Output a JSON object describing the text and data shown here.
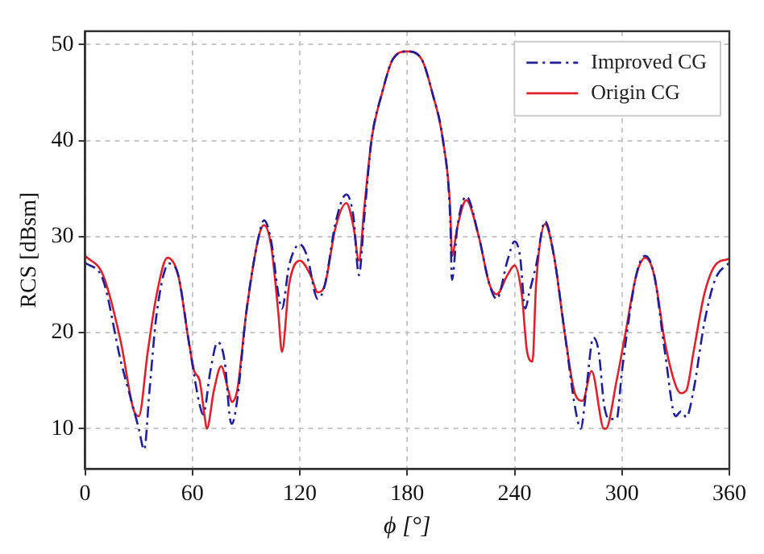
{
  "chart_data": {
    "type": "line",
    "xlabel": "ϕ [°]",
    "ylabel": "RCS [dBsm]",
    "xlim": [
      0,
      360
    ],
    "xticks": [
      0,
      60,
      120,
      180,
      240,
      300,
      360
    ],
    "ylim": [
      5.8,
      51.4
    ],
    "yticks": [
      10,
      20,
      30,
      40,
      50
    ],
    "grid": true,
    "legend": "top right",
    "marker": "none",
    "series": [
      {
        "name": "Improved CG",
        "color": "#1f1f9a",
        "line_style": "dashed",
        "x": [
          0,
          10,
          20,
          25,
          30,
          33,
          36,
          40,
          47,
          52,
          58,
          61,
          64,
          66,
          70,
          74,
          78,
          81,
          82,
          85,
          90,
          97,
          100,
          104,
          108,
          110,
          114,
          120,
          124,
          130,
          134,
          140,
          146,
          150,
          153,
          156,
          160,
          166,
          172,
          180,
          188,
          194,
          200,
          204,
          205,
          208,
          213,
          220,
          226,
          230,
          236,
          240,
          243,
          246,
          248,
          252,
          257,
          262,
          268,
          274,
          277,
          280,
          284,
          287,
          290,
          293,
          297,
          300,
          308,
          313,
          318,
          324,
          330,
          333,
          336,
          340,
          346,
          352,
          360
        ],
        "values": [
          27.3,
          25.5,
          17,
          13.5,
          10,
          7.8,
          14,
          22,
          27.2,
          26,
          19,
          15.5,
          12.5,
          11.5,
          16,
          19,
          17,
          11,
          10.5,
          13,
          22,
          30,
          31.7,
          29.5,
          24,
          22.5,
          27,
          29.2,
          28,
          23.5,
          25,
          31.5,
          34.4,
          32,
          26,
          32,
          40,
          45,
          48.5,
          49.3,
          48.5,
          45,
          40,
          32,
          25.5,
          31,
          34.2,
          30,
          25,
          23.5,
          27.5,
          29.5,
          28,
          22.5,
          24,
          27,
          31.6,
          28,
          20,
          12,
          10,
          14,
          19.5,
          18,
          12.5,
          11,
          11,
          16,
          26,
          28,
          26,
          18,
          11.3,
          11.8,
          11.2,
          14,
          21,
          25.5,
          27.3
        ]
      },
      {
        "name": "Origin CG",
        "color": "#e0202a",
        "line_style": "solid",
        "x": [
          0,
          10,
          20,
          27,
          30,
          35,
          40,
          46,
          52,
          58,
          61,
          64,
          67,
          68,
          72,
          76,
          80,
          82,
          85,
          90,
          97,
          100,
          104,
          108,
          110,
          114,
          120,
          126,
          130,
          134,
          140,
          146,
          150,
          153,
          156,
          160,
          166,
          172,
          180,
          188,
          194,
          200,
          204,
          205,
          208,
          213,
          220,
          226,
          230,
          236,
          240,
          244,
          247,
          250,
          252,
          257,
          262,
          268,
          274,
          278,
          283,
          290,
          291,
          297,
          302,
          308,
          313,
          318,
          324,
          330,
          333,
          336,
          340,
          346,
          352,
          360
        ],
        "values": [
          28,
          26,
          19,
          12,
          11.3,
          18,
          24,
          27.8,
          26,
          19,
          16,
          15,
          11,
          10,
          14,
          16.5,
          14,
          12.8,
          14,
          22,
          30,
          31.2,
          29,
          22,
          18,
          25,
          27.5,
          26,
          24.2,
          25,
          31,
          33.5,
          31,
          27.5,
          33,
          40,
          45,
          48.5,
          49.3,
          48.5,
          45,
          40,
          33,
          28,
          31,
          33.8,
          30,
          25,
          24,
          26,
          27,
          24,
          18,
          17,
          25,
          31.3,
          28,
          20,
          13.5,
          12.9,
          16,
          10,
          10,
          15,
          20,
          26,
          27.8,
          26,
          19,
          14.5,
          13.7,
          14,
          18,
          24,
          27,
          27.7
        ]
      }
    ]
  }
}
